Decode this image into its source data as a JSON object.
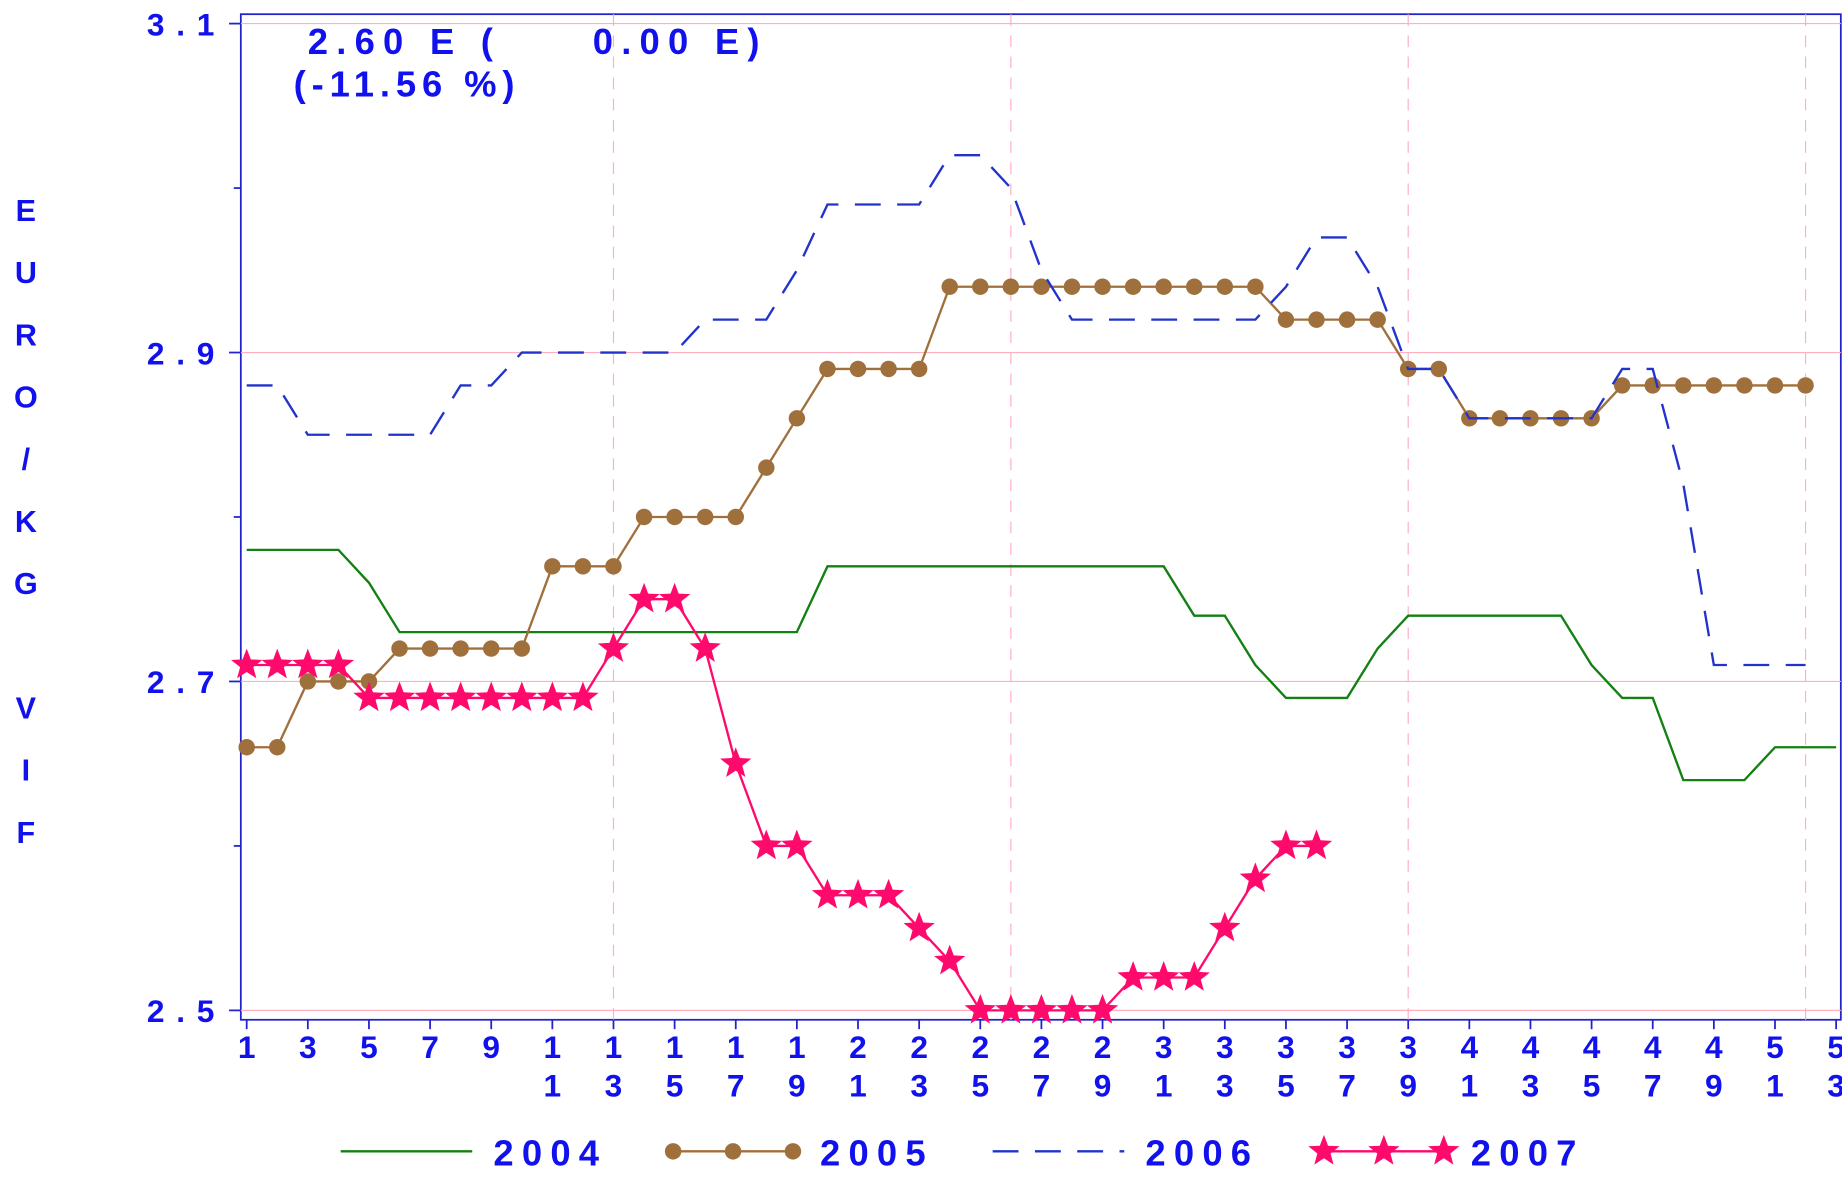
{
  "chart_data": {
    "type": "line",
    "ylabel": "EURO/KG VIF",
    "annotations": [
      "2.60 E (     0.00 E)",
      "(-11.56 %)"
    ],
    "x": [
      1,
      2,
      3,
      4,
      5,
      6,
      7,
      8,
      9,
      10,
      11,
      12,
      13,
      14,
      15,
      16,
      17,
      18,
      19,
      20,
      21,
      22,
      23,
      24,
      25,
      26,
      27,
      28,
      29,
      30,
      31,
      32,
      33,
      34,
      35,
      36,
      37,
      38,
      39,
      40,
      41,
      42,
      43,
      44,
      45,
      46,
      47,
      48,
      49,
      50,
      51,
      52,
      53
    ],
    "xlim": [
      1,
      53
    ],
    "xticks": [
      1,
      3,
      5,
      7,
      9,
      11,
      13,
      15,
      17,
      19,
      21,
      23,
      25,
      27,
      29,
      31,
      33,
      35,
      37,
      39,
      41,
      43,
      45,
      47,
      49,
      51,
      53
    ],
    "xgrid": [
      13,
      26,
      39,
      52
    ],
    "ylim": [
      2.5,
      3.1
    ],
    "yticks": [
      2.5,
      2.7,
      2.9,
      3.1
    ],
    "yminor": [
      2.6,
      2.8,
      3.0
    ],
    "grid": true,
    "legend": "bottom",
    "series": [
      {
        "name": "2004",
        "color": "#128012",
        "marker": "none",
        "dash": false,
        "values": [
          2.78,
          2.78,
          2.78,
          2.78,
          2.76,
          2.73,
          2.73,
          2.73,
          2.73,
          2.73,
          2.73,
          2.73,
          2.73,
          2.73,
          2.73,
          2.73,
          2.73,
          2.73,
          2.73,
          2.77,
          2.77,
          2.77,
          2.77,
          2.77,
          2.77,
          2.77,
          2.77,
          2.77,
          2.77,
          2.77,
          2.77,
          2.74,
          2.74,
          2.71,
          2.69,
          2.69,
          2.69,
          2.72,
          2.74,
          2.74,
          2.74,
          2.74,
          2.74,
          2.74,
          2.71,
          2.69,
          2.69,
          2.64,
          2.64,
          2.64,
          2.66,
          2.66,
          2.66
        ]
      },
      {
        "name": "2005",
        "color": "#a0703c",
        "marker": "circle",
        "dash": false,
        "values": [
          2.66,
          2.66,
          2.7,
          2.7,
          2.7,
          2.72,
          2.72,
          2.72,
          2.72,
          2.72,
          2.77,
          2.77,
          2.77,
          2.8,
          2.8,
          2.8,
          2.8,
          2.83,
          2.86,
          2.89,
          2.89,
          2.89,
          2.89,
          2.94,
          2.94,
          2.94,
          2.94,
          2.94,
          2.94,
          2.94,
          2.94,
          2.94,
          2.94,
          2.94,
          2.92,
          2.92,
          2.92,
          2.92,
          2.89,
          2.89,
          2.86,
          2.86,
          2.86,
          2.86,
          2.86,
          2.88,
          2.88,
          2.88,
          2.88,
          2.88,
          2.88,
          2.88,
          null
        ]
      },
      {
        "name": "2006",
        "color": "#2233cc",
        "marker": "none",
        "dash": true,
        "values": [
          2.88,
          2.88,
          2.85,
          2.85,
          2.85,
          2.85,
          2.85,
          2.88,
          2.88,
          2.9,
          2.9,
          2.9,
          2.9,
          2.9,
          2.9,
          2.92,
          2.92,
          2.92,
          2.95,
          2.99,
          2.99,
          2.99,
          2.99,
          3.02,
          3.02,
          3.0,
          2.95,
          2.92,
          2.92,
          2.92,
          2.92,
          2.92,
          2.92,
          2.92,
          2.94,
          2.97,
          2.97,
          2.94,
          2.89,
          2.89,
          2.86,
          2.86,
          2.86,
          2.86,
          2.86,
          2.89,
          2.89,
          2.82,
          2.71,
          2.71,
          2.71,
          2.71,
          null
        ]
      },
      {
        "name": "2007",
        "color": "#ff0a6c",
        "marker": "star",
        "dash": false,
        "values": [
          2.71,
          2.71,
          2.71,
          2.71,
          2.69,
          2.69,
          2.69,
          2.69,
          2.69,
          2.69,
          2.69,
          2.69,
          2.72,
          2.75,
          2.75,
          2.72,
          2.65,
          2.6,
          2.6,
          2.57,
          2.57,
          2.57,
          2.55,
          2.53,
          2.5,
          2.5,
          2.5,
          2.5,
          2.5,
          2.52,
          2.52,
          2.52,
          2.55,
          2.58,
          2.6,
          2.6,
          null,
          null,
          null,
          null,
          null,
          null,
          null,
          null,
          null,
          null,
          null,
          null,
          null,
          null,
          null,
          null,
          null
        ]
      }
    ]
  }
}
